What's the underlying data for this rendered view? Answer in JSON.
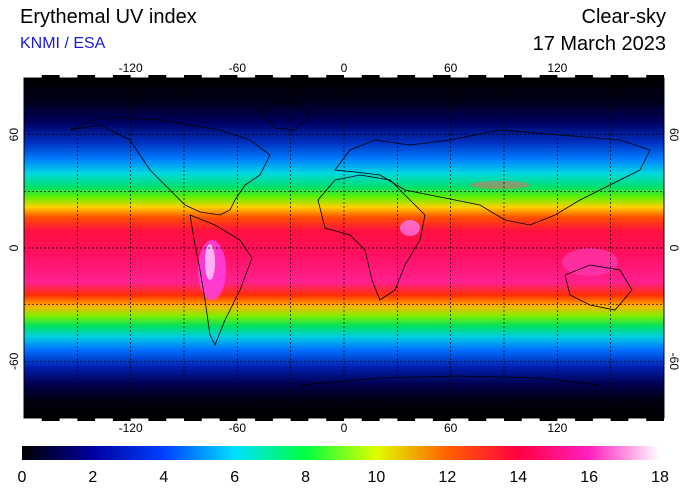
{
  "header": {
    "title": "Erythemal UV index",
    "source": "KNMI / ESA",
    "mode": "Clear-sky",
    "date": "17 March 2023"
  },
  "map": {
    "lon_ticks": [
      "-120",
      "-60",
      "0",
      "60",
      "120"
    ],
    "lat_ticks": [
      "60",
      "0",
      "-60"
    ],
    "lon_values": [
      -120,
      -60,
      0,
      60,
      120
    ],
    "lat_values": [
      60,
      0,
      -60
    ],
    "grid_lon_step": 30,
    "grid_lat_step": 30,
    "extent": {
      "lon": [
        -180,
        180
      ],
      "lat": [
        -90,
        90
      ]
    }
  },
  "colorbar": {
    "labels": [
      "0",
      "2",
      "4",
      "6",
      "8",
      "10",
      "12",
      "14",
      "16",
      "18"
    ],
    "min": 0,
    "max": 18,
    "stops": [
      {
        "value": 0,
        "color": "#000000"
      },
      {
        "value": 2,
        "color": "#0000a0"
      },
      {
        "value": 4,
        "color": "#0040ff"
      },
      {
        "value": 6,
        "color": "#00e0ff"
      },
      {
        "value": 8,
        "color": "#00ff40"
      },
      {
        "value": 10,
        "color": "#e0ff00"
      },
      {
        "value": 12,
        "color": "#ff6000"
      },
      {
        "value": 14,
        "color": "#ff0040"
      },
      {
        "value": 16,
        "color": "#ff20c0"
      },
      {
        "value": 18,
        "color": "#ffffff"
      }
    ]
  }
}
